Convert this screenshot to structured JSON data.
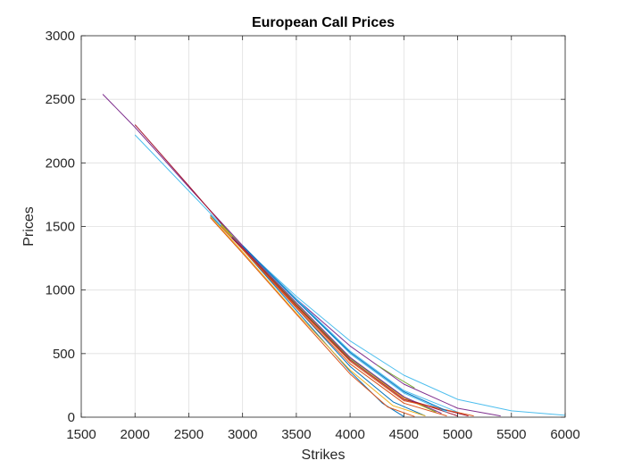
{
  "chart_data": {
    "type": "line",
    "title": "European Call Prices",
    "xlabel": "Strikes",
    "ylabel": "Prices",
    "xlim": [
      1500,
      6000
    ],
    "ylim": [
      0,
      3000
    ],
    "xticks": [
      1500,
      2000,
      2500,
      3000,
      3500,
      4000,
      4500,
      5000,
      5500,
      6000
    ],
    "yticks": [
      0,
      500,
      1000,
      1500,
      2000,
      2500,
      3000
    ],
    "grid": true,
    "colors": {
      "blue": "#0072BD",
      "orange": "#D95319",
      "yellow": "#EDB120",
      "purple": "#7E2F8E",
      "green": "#77AC30",
      "cyan": "#4DBEEE",
      "red": "#A2142F"
    },
    "series": [
      {
        "color": "#4DBEEE",
        "x": [
          2000,
          2500,
          3000,
          3500,
          4000,
          4500,
          5000,
          5500,
          6000
        ],
        "y": [
          2220,
          1780,
          1340,
          950,
          600,
          330,
          140,
          50,
          15
        ]
      },
      {
        "color": "#7E2F8E",
        "x": [
          1700,
          2000,
          2500,
          3000,
          3500,
          4000,
          4500,
          5000,
          5400
        ],
        "y": [
          2540,
          2280,
          1810,
          1350,
          930,
          560,
          260,
          70,
          10
        ]
      },
      {
        "color": "#A2142F",
        "x": [
          2000,
          2500,
          3000,
          3500,
          4000,
          4500,
          5000
        ],
        "y": [
          2300,
          1820,
          1330,
          880,
          470,
          150,
          10
        ]
      },
      {
        "color": "#0072BD",
        "x": [
          2700,
          3000,
          3500,
          4000,
          4300,
          4500
        ],
        "y": [
          1590,
          1320,
          840,
          360,
          110,
          5
        ]
      },
      {
        "color": "#0072BD",
        "x": [
          2800,
          3000,
          3500,
          4000,
          4400,
          4700
        ],
        "y": [
          1510,
          1330,
          860,
          400,
          120,
          10
        ]
      },
      {
        "color": "#D95319",
        "x": [
          2700,
          3000,
          3500,
          4000,
          4350,
          4600
        ],
        "y": [
          1570,
          1290,
          810,
          340,
          80,
          5
        ]
      },
      {
        "color": "#D95319",
        "x": [
          2800,
          3000,
          3500,
          4000,
          4500,
          4900
        ],
        "y": [
          1500,
          1320,
          860,
          420,
          110,
          10
        ]
      },
      {
        "color": "#EDB120",
        "x": [
          2700,
          3000,
          3500,
          4000,
          4400,
          4700
        ],
        "y": [
          1580,
          1300,
          820,
          370,
          90,
          10
        ]
      },
      {
        "color": "#EDB120",
        "x": [
          2800,
          3000,
          3500,
          4000,
          4500,
          4800
        ],
        "y": [
          1510,
          1330,
          880,
          450,
          150,
          40
        ]
      },
      {
        "color": "#77AC30",
        "x": [
          2800,
          3000,
          3500,
          4000,
          4500,
          4800
        ],
        "y": [
          1520,
          1340,
          890,
          460,
          160,
          40
        ]
      },
      {
        "color": "#77AC30",
        "x": [
          4250,
          4400,
          4600
        ],
        "y": [
          410,
          330,
          230
        ]
      },
      {
        "color": "#4DBEEE",
        "x": [
          2900,
          3000,
          3500,
          4000,
          4500,
          4900
        ],
        "y": [
          1410,
          1340,
          920,
          500,
          190,
          40
        ]
      },
      {
        "color": "#4DBEEE",
        "x": [
          3000,
          3500,
          4000,
          4500,
          5000
        ],
        "y": [
          1350,
          930,
          520,
          210,
          40
        ]
      },
      {
        "color": "#7E2F8E",
        "x": [
          2900,
          3000,
          3500,
          4000,
          4500,
          4850
        ],
        "y": [
          1420,
          1340,
          900,
          470,
          160,
          30
        ]
      },
      {
        "color": "#A2142F",
        "x": [
          2900,
          3000,
          3500,
          4000,
          4500,
          5100
        ],
        "y": [
          1410,
          1330,
          880,
          450,
          140,
          10
        ]
      },
      {
        "color": "#D95319",
        "x": [
          3000,
          3500,
          4000,
          4500,
          5150
        ],
        "y": [
          1320,
          870,
          440,
          130,
          10
        ]
      },
      {
        "color": "#0072BD",
        "x": [
          3000,
          3500,
          4000,
          4500,
          4900
        ],
        "y": [
          1350,
          920,
          510,
          200,
          50
        ]
      }
    ]
  }
}
